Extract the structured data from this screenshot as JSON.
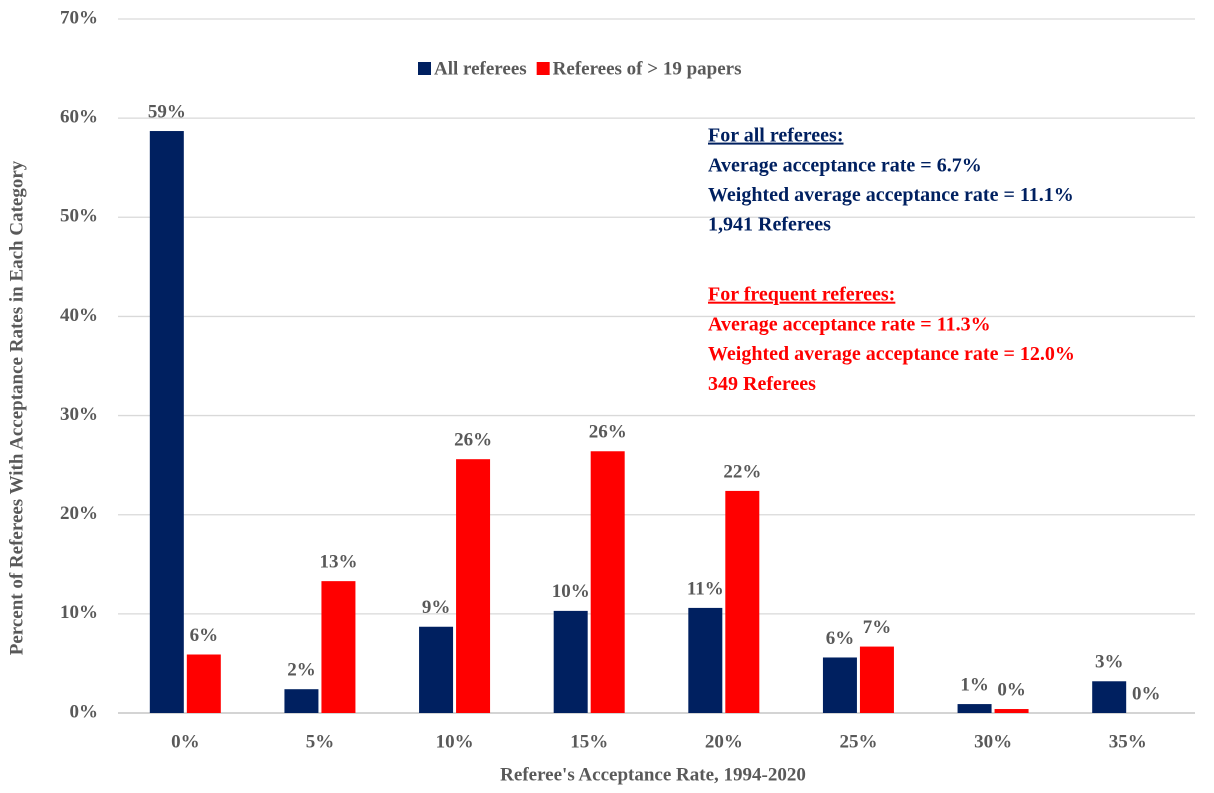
{
  "chart_data": {
    "type": "bar",
    "x_label": "Referee's Acceptance Rate, 1994-2020",
    "y_label": "Percent of Referees With Acceptance  Rates in Each Category",
    "categories": [
      "0%",
      "5%",
      "10%",
      "15%",
      "20%",
      "25%",
      "30%",
      "35%"
    ],
    "series": [
      {
        "name": "All referees",
        "color": "#002060",
        "values": [
          58.7,
          2.4,
          8.7,
          10.3,
          10.6,
          5.6,
          0.9,
          3.2
        ],
        "value_labels": [
          "59%",
          "2%",
          "9%",
          "10%",
          "11%",
          "6%",
          "1%",
          "3%"
        ]
      },
      {
        "name": "Referees of > 19 papers",
        "color": "#ff0000",
        "values": [
          5.9,
          13.3,
          25.6,
          26.4,
          22.4,
          6.7,
          0.4,
          0.0
        ],
        "value_labels": [
          "6%",
          "13%",
          "26%",
          "26%",
          "22%",
          "7%",
          "0%",
          "0%"
        ]
      }
    ],
    "ylim": [
      0,
      70
    ],
    "yticks": [
      {
        "value": 0,
        "label": "0%"
      },
      {
        "value": 10,
        "label": "10%"
      },
      {
        "value": 20,
        "label": "20%"
      },
      {
        "value": 30,
        "label": "30%"
      },
      {
        "value": 40,
        "label": "40%"
      },
      {
        "value": 50,
        "label": "50%"
      },
      {
        "value": 60,
        "label": "60%"
      },
      {
        "value": 70,
        "label": "70%"
      }
    ],
    "grid": true,
    "legend": "top",
    "annotations": [
      {
        "color": "#002060",
        "heading": "For all referees:",
        "lines": [
          "Average acceptance rate = 6.7%",
          "Weighted average acceptance rate = 11.1%",
          "1,941 Referees"
        ]
      },
      {
        "color": "#ff0000",
        "heading": "For frequent referees:",
        "lines": [
          "Average acceptance rate = 11.3%",
          "Weighted average acceptance rate = 12.0%",
          "349 Referees"
        ]
      }
    ]
  }
}
